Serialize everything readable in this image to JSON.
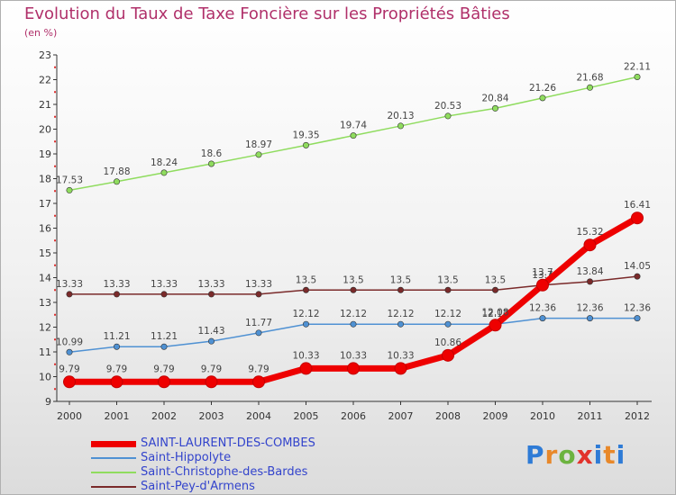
{
  "chart_data": {
    "type": "line",
    "title": "Evolution du Taux de Taxe Foncière sur les Propriétés Bâties",
    "subtitle": "(en %)",
    "xlabel": "",
    "ylabel": "",
    "x": [
      "2000",
      "2001",
      "2002",
      "2003",
      "2004",
      "2005",
      "2006",
      "2007",
      "2008",
      "2009",
      "2010",
      "2011",
      "2012"
    ],
    "ylim": [
      9,
      23
    ],
    "yticks": [
      9,
      10,
      11,
      12,
      13,
      14,
      15,
      16,
      17,
      18,
      19,
      20,
      21,
      22,
      23
    ],
    "grid": false,
    "legend_position": "bottom-left",
    "series": [
      {
        "name": "SAINT-LAURENT-DES-COMBES",
        "color": "#ee0000",
        "values": [
          9.79,
          9.79,
          9.79,
          9.79,
          9.79,
          10.33,
          10.33,
          10.33,
          10.86,
          12.08,
          13.7,
          15.32,
          16.41
        ],
        "labels": [
          "9.79",
          "9.79",
          "9.79",
          "9.79",
          "9.79",
          "10.33",
          "10.33",
          "10.33",
          "10.86",
          "12.08",
          "13.7",
          "15.32",
          "16.41"
        ]
      },
      {
        "name": "Saint-Hippolyte",
        "color": "#4f91d3",
        "values": [
          10.99,
          11.21,
          11.21,
          11.43,
          11.77,
          12.12,
          12.12,
          12.12,
          12.12,
          12.12,
          12.36,
          12.36,
          12.36
        ],
        "labels": [
          "10.99",
          "11.21",
          "11.21",
          "11.43",
          "11.77",
          "12.12",
          "12.12",
          "12.12",
          "12.12",
          "12.12",
          "12.36",
          "12.36",
          "12.36"
        ]
      },
      {
        "name": "Saint-Christophe-des-Bardes",
        "color": "#8fdc5e",
        "values": [
          17.53,
          17.88,
          18.24,
          18.6,
          18.97,
          19.35,
          19.74,
          20.13,
          20.53,
          20.84,
          21.26,
          21.68,
          22.11
        ],
        "labels": [
          "17.53",
          "17.88",
          "18.24",
          "18.6",
          "18.97",
          "19.35",
          "19.74",
          "20.13",
          "20.53",
          "20.84",
          "21.26",
          "21.68",
          "22.11"
        ]
      },
      {
        "name": "Saint-Pey-d'Armens",
        "color": "#7a2a2a",
        "values": [
          13.33,
          13.33,
          13.33,
          13.33,
          13.33,
          13.5,
          13.5,
          13.5,
          13.5,
          13.5,
          13.7,
          13.84,
          14.05
        ],
        "labels": [
          "13.33",
          "13.33",
          "13.33",
          "13.33",
          "13.33",
          "13.5",
          "13.5",
          "13.5",
          "13.5",
          "13.5",
          "13.7",
          "13.84",
          "14.05"
        ]
      }
    ]
  },
  "logo": {
    "p": "P",
    "r": "r",
    "o": "o",
    "x": "x",
    "i": "i",
    "t": "t",
    "i2": "i"
  }
}
